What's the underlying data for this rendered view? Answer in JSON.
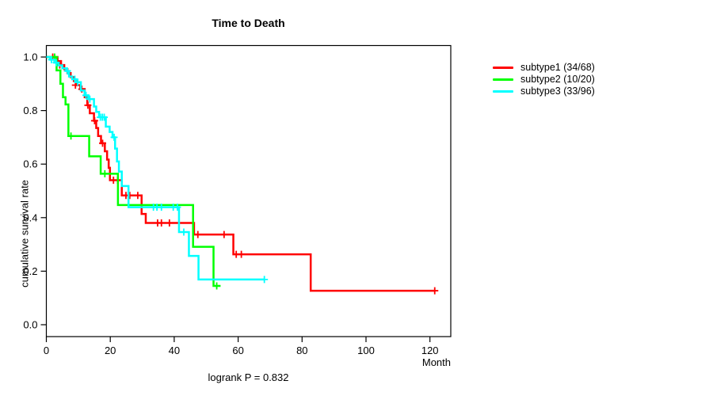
{
  "chart_data": {
    "type": "line",
    "subtype": "kaplan-meier-step",
    "title": "Time to Death",
    "xlabel": "Month",
    "ylabel": "cumulative survival rate",
    "footnote": "logrank P = 0.832",
    "xlim": [
      0,
      126.5
    ],
    "ylim": [
      -0.044,
      1.043
    ],
    "xticks": [
      0,
      20,
      40,
      60,
      80,
      100,
      120
    ],
    "yticks": [
      0.0,
      0.2,
      0.4,
      0.6,
      0.8,
      1.0
    ],
    "grid": false,
    "legend_position": "right",
    "frame_color": "#000000",
    "series": [
      {
        "name": "subtype1",
        "label": "subtype1 (34/68)",
        "events": 34,
        "n": 68,
        "color": "#ff0000",
        "start": [
          0,
          1.0
        ],
        "steps": [
          [
            3.5,
            0.985
          ],
          [
            4.6,
            0.97
          ],
          [
            5.6,
            0.955
          ],
          [
            6.6,
            0.94
          ],
          [
            7.6,
            0.925
          ],
          [
            8.6,
            0.91
          ],
          [
            9.6,
            0.895
          ],
          [
            10.6,
            0.88
          ],
          [
            12,
            0.85
          ],
          [
            12.8,
            0.82
          ],
          [
            13.6,
            0.79
          ],
          [
            14.9,
            0.762
          ],
          [
            15.6,
            0.735
          ],
          [
            16.2,
            0.705
          ],
          [
            17.1,
            0.678
          ],
          [
            18.3,
            0.648
          ],
          [
            19,
            0.617
          ],
          [
            19.5,
            0.586
          ],
          [
            19.9,
            0.54
          ],
          [
            23.6,
            0.483
          ],
          [
            29.8,
            0.414
          ],
          [
            31.1,
            0.38
          ],
          [
            46.2,
            0.337
          ],
          [
            58.5,
            0.263
          ],
          [
            82.7,
            0.127
          ]
        ],
        "end_month": 121.5,
        "censors": [
          [
            2,
            1.0
          ],
          [
            4.2,
            0.97
          ],
          [
            9.1,
            0.895
          ],
          [
            11.1,
            0.88
          ],
          [
            13,
            0.82
          ],
          [
            15.1,
            0.762
          ],
          [
            17.6,
            0.678
          ],
          [
            21,
            0.54
          ],
          [
            22.3,
            0.54
          ],
          [
            24.9,
            0.483
          ],
          [
            26.1,
            0.483
          ],
          [
            28.6,
            0.483
          ],
          [
            34.8,
            0.38
          ],
          [
            36,
            0.38
          ],
          [
            38.5,
            0.38
          ],
          [
            47.4,
            0.337
          ],
          [
            55.6,
            0.337
          ],
          [
            59.4,
            0.263
          ],
          [
            61,
            0.263
          ],
          [
            121.5,
            0.127
          ]
        ]
      },
      {
        "name": "subtype2",
        "label": "subtype2 (10/20)",
        "events": 10,
        "n": 20,
        "color": "#00ff00",
        "start": [
          0,
          1.0
        ],
        "steps": [
          [
            3.2,
            0.95
          ],
          [
            4.4,
            0.9
          ],
          [
            5.2,
            0.85
          ],
          [
            6,
            0.823
          ],
          [
            6.9,
            0.705
          ],
          [
            13.4,
            0.629
          ],
          [
            17,
            0.564
          ],
          [
            22.4,
            0.447
          ],
          [
            45.9,
            0.291
          ],
          [
            52.3,
            0.145
          ]
        ],
        "end_month": 54.5,
        "censors": [
          [
            2.6,
            1.0
          ],
          [
            7.7,
            0.705
          ],
          [
            18.3,
            0.564
          ],
          [
            53.3,
            0.145
          ]
        ]
      },
      {
        "name": "subtype3",
        "label": "subtype3 (33/96)",
        "events": 33,
        "n": 96,
        "color": "#00ffff",
        "start": [
          0,
          1.0
        ],
        "steps": [
          [
            1.2,
            0.99
          ],
          [
            2.5,
            0.979
          ],
          [
            3.8,
            0.969
          ],
          [
            5,
            0.958
          ],
          [
            6.2,
            0.948
          ],
          [
            7.1,
            0.927
          ],
          [
            8.1,
            0.917
          ],
          [
            9.2,
            0.906
          ],
          [
            10.8,
            0.875
          ],
          [
            12,
            0.857
          ],
          [
            13.1,
            0.843
          ],
          [
            14.9,
            0.815
          ],
          [
            15.6,
            0.795
          ],
          [
            16.5,
            0.775
          ],
          [
            18.6,
            0.74
          ],
          [
            19.8,
            0.72
          ],
          [
            20.7,
            0.7
          ],
          [
            21.5,
            0.658
          ],
          [
            22.1,
            0.61
          ],
          [
            22.7,
            0.572
          ],
          [
            23.6,
            0.518
          ],
          [
            25.7,
            0.439
          ],
          [
            41.5,
            0.346
          ],
          [
            44.6,
            0.257
          ],
          [
            47.6,
            0.169
          ]
        ],
        "end_month": 68.2,
        "censors": [
          [
            1.6,
            0.99
          ],
          [
            3.1,
            0.979
          ],
          [
            6.6,
            0.948
          ],
          [
            8.9,
            0.917
          ],
          [
            9.8,
            0.906
          ],
          [
            12.4,
            0.857
          ],
          [
            13.6,
            0.843
          ],
          [
            16.9,
            0.775
          ],
          [
            17.5,
            0.775
          ],
          [
            18.1,
            0.775
          ],
          [
            21.2,
            0.7
          ],
          [
            33.5,
            0.439
          ],
          [
            34.6,
            0.439
          ],
          [
            36,
            0.439
          ],
          [
            39.7,
            0.439
          ],
          [
            41,
            0.439
          ],
          [
            43,
            0.346
          ],
          [
            68.2,
            0.169
          ]
        ]
      }
    ]
  }
}
